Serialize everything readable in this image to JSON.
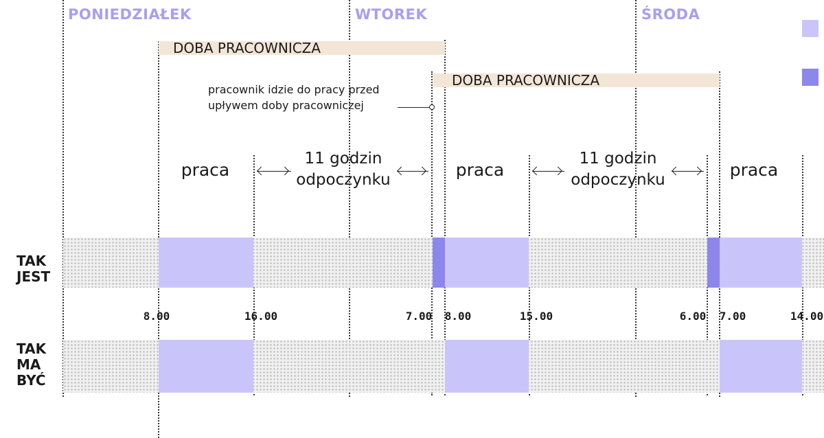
{
  "days": [
    "PONIEDZIAŁEK",
    "WTOREK",
    "ŚRODA"
  ],
  "doba_labels": [
    "DOBA PRACOWNICZA",
    "DOBA PRACOWNICZA"
  ],
  "note": {
    "line1": "pracownik idzie do pracy przed",
    "line2": "upływem doby pracowniczej"
  },
  "segments": {
    "praca": [
      "praca",
      "praca",
      "praca"
    ],
    "rest": [
      {
        "line1": "11 godzin",
        "line2": "odpoczynku"
      },
      {
        "line1": "11 godzin",
        "line2": "odpoczynku"
      }
    ]
  },
  "rows": {
    "tak_jest": [
      "TAK",
      "JEST"
    ],
    "tak_ma_byc": [
      "TAK",
      "MA",
      "BYĆ"
    ]
  },
  "times": [
    "8.00",
    "16.00",
    "7.00",
    "8.00",
    "15.00",
    "6.00",
    "7.00",
    "14.00"
  ],
  "colors": {
    "accent_light": "#c9c5fb",
    "accent_dark": "#8d86ec",
    "day_label": "#a79ff2",
    "doba_bar": "#f3e6d6"
  },
  "legend": [
    "light-purple-square",
    "dark-purple-square"
  ]
}
